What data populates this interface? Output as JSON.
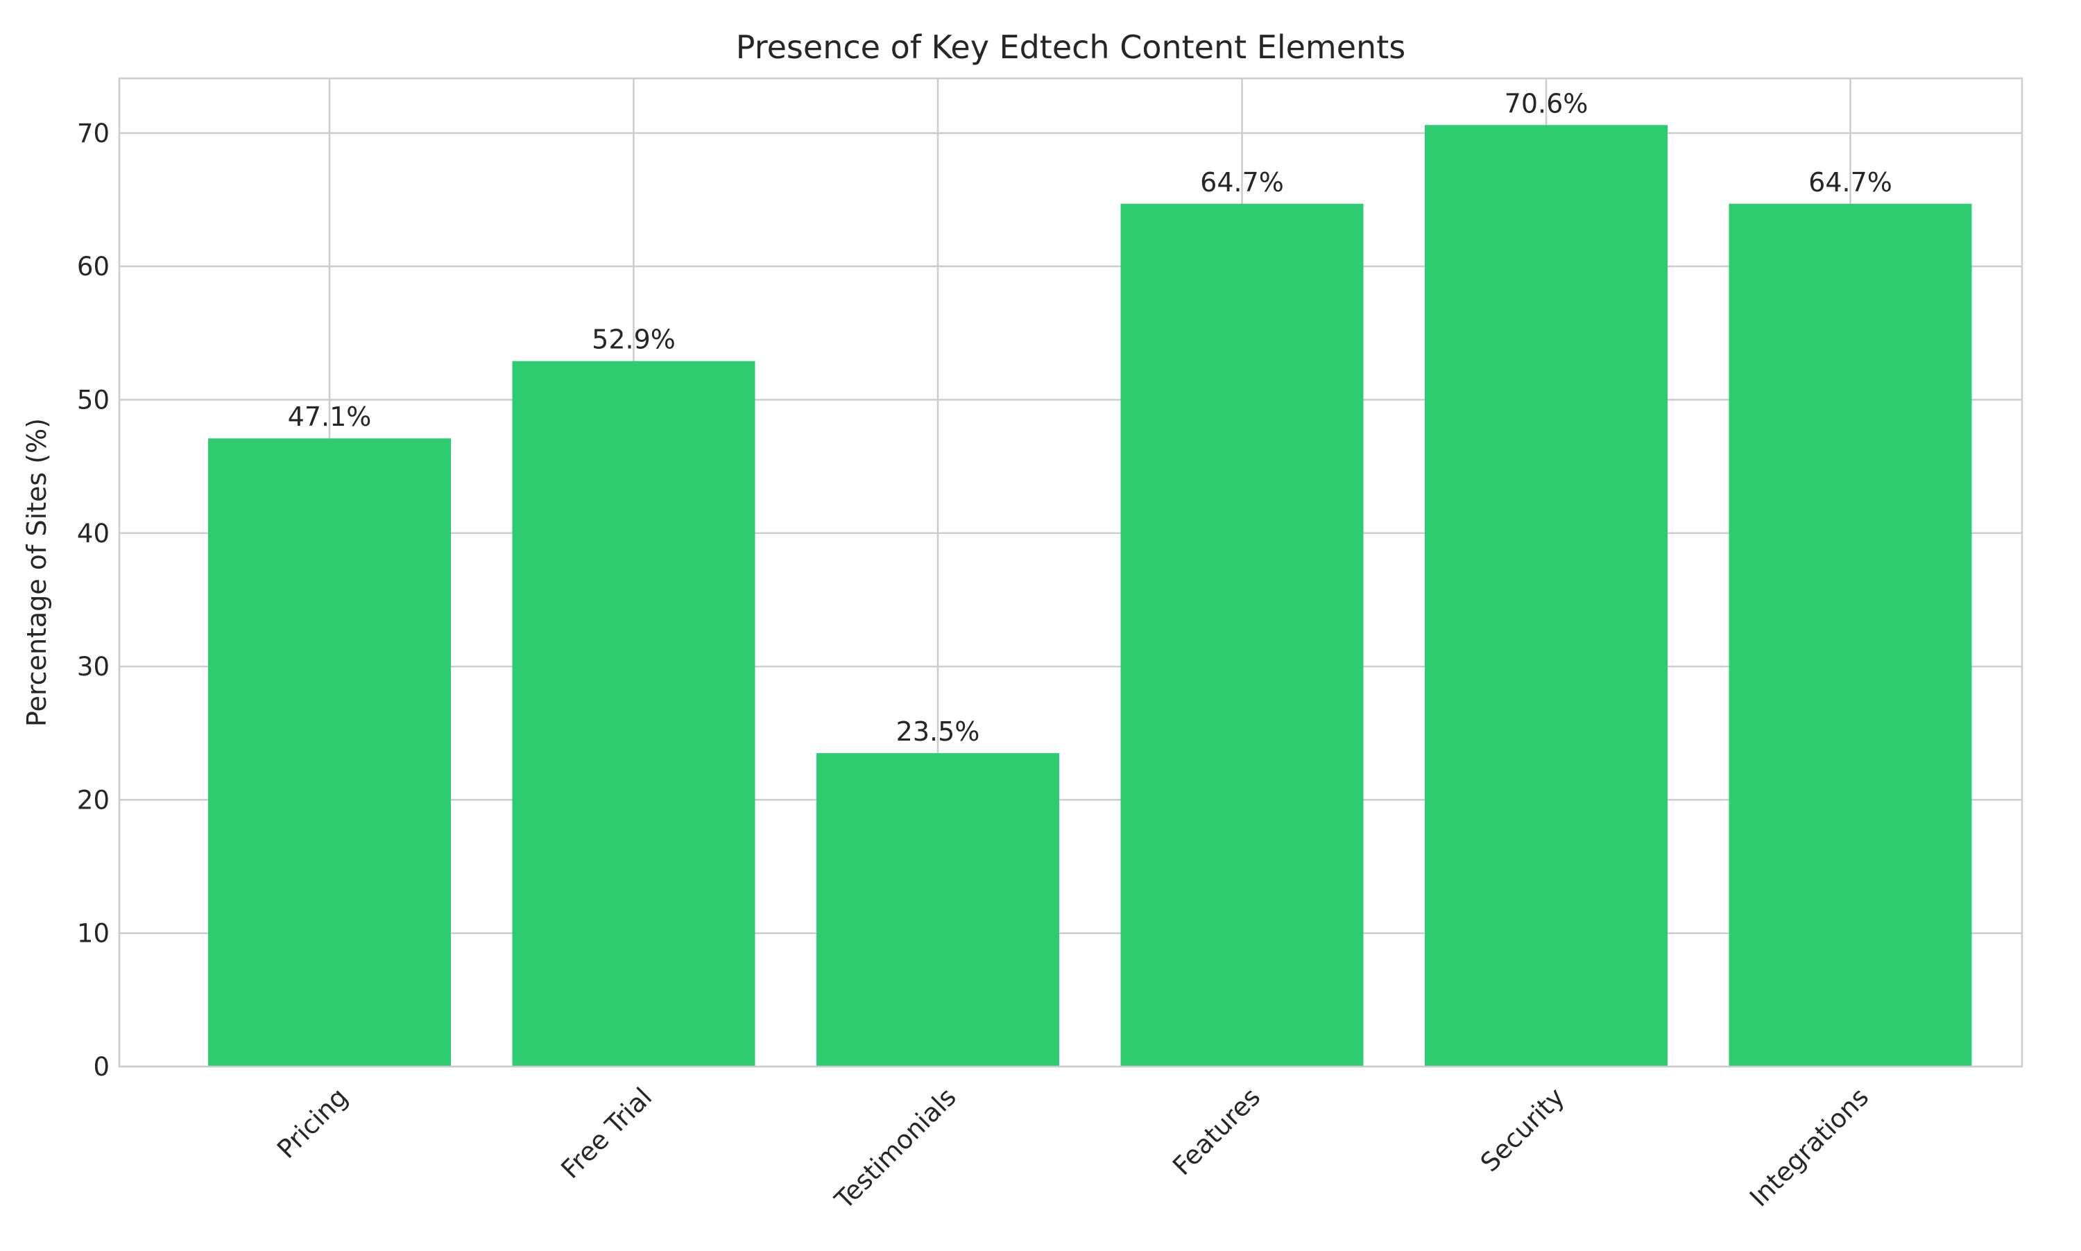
{
  "chart_data": {
    "type": "bar",
    "title": "Presence of Key Edtech Content Elements",
    "xlabel": "",
    "ylabel": "Percentage of Sites (%)",
    "categories": [
      "Pricing",
      "Free Trial",
      "Testimonials",
      "Features",
      "Security",
      "Integrations"
    ],
    "values": [
      47.1,
      52.9,
      23.5,
      64.7,
      70.6,
      64.7
    ],
    "value_labels": [
      "47.1%",
      "52.9%",
      "23.5%",
      "64.7%",
      "70.6%",
      "64.7%"
    ],
    "ylim": [
      0,
      74.1
    ],
    "yticks": [
      0,
      10,
      20,
      30,
      40,
      50,
      60,
      70
    ],
    "grid": true,
    "bar_color": "#2ecc71",
    "grid_color": "#cccccc",
    "tick_label_rotation_deg": 45
  }
}
